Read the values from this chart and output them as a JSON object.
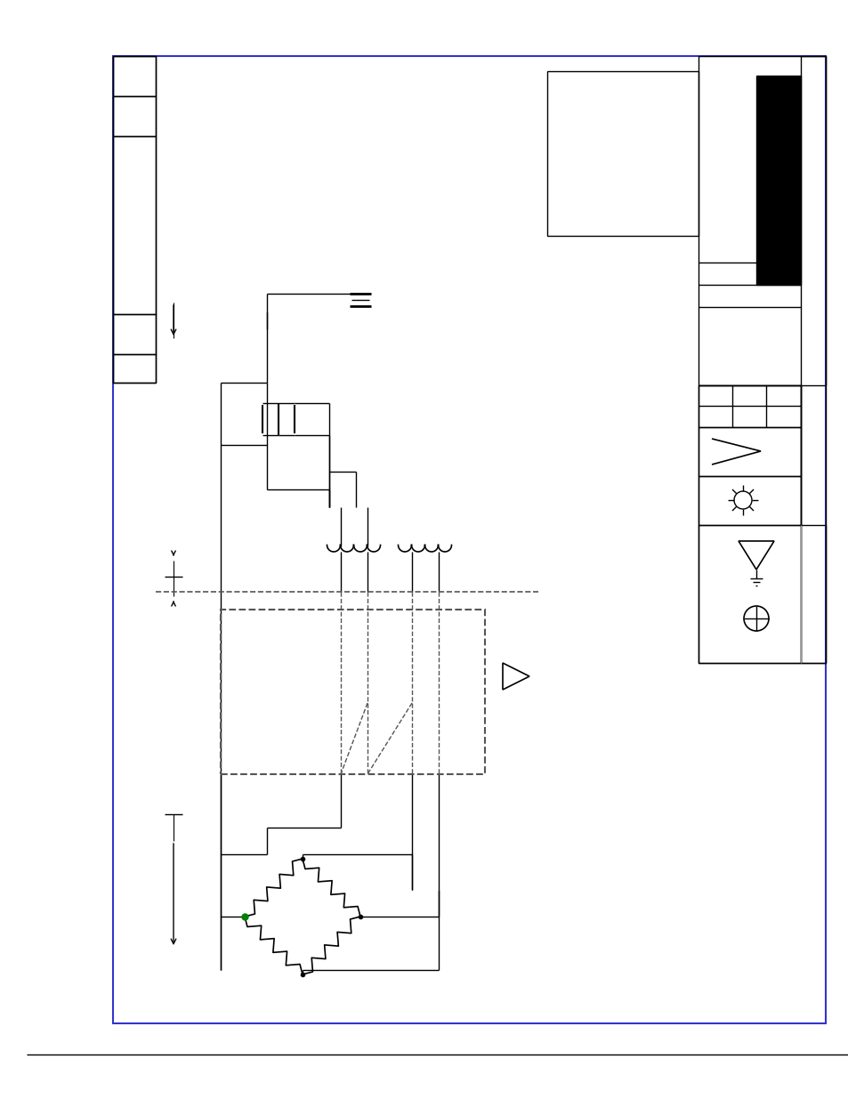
{
  "bg_color": "#ffffff",
  "border_color": "#3333cc",
  "line_color": "#000000",
  "gray_line_color": "#999999",
  "dashed_line_color": "#555555",
  "fig_width": 9.54,
  "fig_height": 12.35
}
